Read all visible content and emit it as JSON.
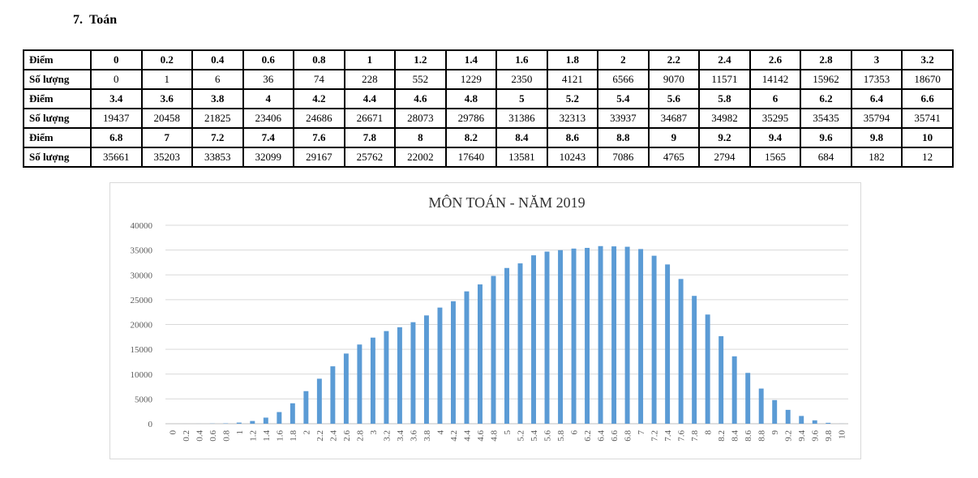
{
  "heading": {
    "number": "7.",
    "subject": "Toán"
  },
  "table": {
    "label_score": "Điểm",
    "label_count": "Số lượng",
    "rows": [
      {
        "scores": [
          "0",
          "0.2",
          "0.4",
          "0.6",
          "0.8",
          "1",
          "1.2",
          "1.4",
          "1.6",
          "1.8",
          "2",
          "2.2",
          "2.4",
          "2.6",
          "2.8",
          "3",
          "3.2"
        ],
        "counts": [
          "0",
          "1",
          "6",
          "36",
          "74",
          "228",
          "552",
          "1229",
          "2350",
          "4121",
          "6566",
          "9070",
          "11571",
          "14142",
          "15962",
          "17353",
          "18670"
        ]
      },
      {
        "scores": [
          "3.4",
          "3.6",
          "3.8",
          "4",
          "4.2",
          "4.4",
          "4.6",
          "4.8",
          "5",
          "5.2",
          "5.4",
          "5.6",
          "5.8",
          "6",
          "6.2",
          "6.4",
          "6.6"
        ],
        "counts": [
          "19437",
          "20458",
          "21825",
          "23406",
          "24686",
          "26671",
          "28073",
          "29786",
          "31386",
          "32313",
          "33937",
          "34687",
          "34982",
          "35295",
          "35435",
          "35794",
          "35741"
        ]
      },
      {
        "scores": [
          "6.8",
          "7",
          "7.2",
          "7.4",
          "7.6",
          "7.8",
          "8",
          "8.2",
          "8.4",
          "8.6",
          "8.8",
          "9",
          "9.2",
          "9.4",
          "9.6",
          "9.8",
          "10"
        ],
        "counts": [
          "35661",
          "35203",
          "33853",
          "32099",
          "29167",
          "25762",
          "22002",
          "17640",
          "13581",
          "10243",
          "7086",
          "4765",
          "2794",
          "1565",
          "684",
          "182",
          "12"
        ]
      }
    ]
  },
  "chart_data": {
    "type": "bar",
    "title": "MÔN TOÁN - NĂM 2019",
    "xlabel": "",
    "ylabel": "",
    "ylim": [
      0,
      40000
    ],
    "yticks": [
      0,
      5000,
      10000,
      15000,
      20000,
      25000,
      30000,
      35000,
      40000
    ],
    "grid": true,
    "bar_color": "#5b9bd5",
    "categories": [
      "0",
      "0.2",
      "0.4",
      "0.6",
      "0.8",
      "1",
      "1.2",
      "1.4",
      "1.6",
      "1.8",
      "2",
      "2.2",
      "2.4",
      "2.6",
      "2.8",
      "3",
      "3.2",
      "3.4",
      "3.6",
      "3.8",
      "4",
      "4.2",
      "4.4",
      "4.6",
      "4.8",
      "5",
      "5.2",
      "5.4",
      "5.6",
      "5.8",
      "6",
      "6.2",
      "6.4",
      "6.6",
      "6.8",
      "7",
      "7.2",
      "7.4",
      "7.6",
      "7.8",
      "8",
      "8.2",
      "8.4",
      "8.6",
      "8.8",
      "9",
      "9.2",
      "9.4",
      "9.6",
      "9.8",
      "10"
    ],
    "values": [
      0,
      1,
      6,
      36,
      74,
      228,
      552,
      1229,
      2350,
      4121,
      6566,
      9070,
      11571,
      14142,
      15962,
      17353,
      18670,
      19437,
      20458,
      21825,
      23406,
      24686,
      26671,
      28073,
      29786,
      31386,
      32313,
      33937,
      34687,
      34982,
      35295,
      35435,
      35794,
      35741,
      35661,
      35203,
      33853,
      32099,
      29167,
      25762,
      22002,
      17640,
      13581,
      10243,
      7086,
      4765,
      2794,
      1565,
      684,
      182,
      12
    ]
  }
}
